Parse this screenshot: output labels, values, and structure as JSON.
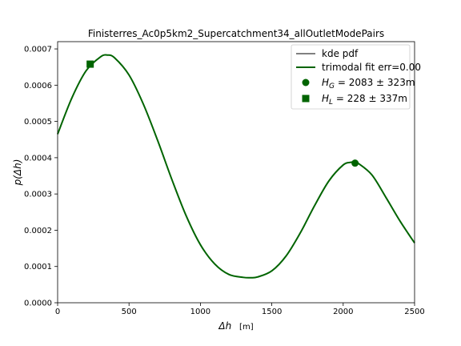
{
  "chart_data": {
    "type": "line",
    "title": "Finisterres_Ac0p5km2_Supercatchment34_allOutletModePairs",
    "xlabel": {
      "symbol": "Δh",
      "unit": "[m]"
    },
    "ylabel": {
      "symbol": "p(Δh)"
    },
    "xlim": [
      0,
      2500
    ],
    "ylim": [
      0,
      0.00072
    ],
    "xticks": [
      0,
      500,
      1000,
      1500,
      2000,
      2500
    ],
    "xtick_labels": [
      "0",
      "500",
      "1000",
      "1500",
      "2000",
      "2500"
    ],
    "yticks": [
      0,
      0.0001,
      0.0002,
      0.0003,
      0.0004,
      0.0005,
      0.0006,
      0.0007
    ],
    "ytick_labels": [
      "0.0000",
      "0.0001",
      "0.0002",
      "0.0003",
      "0.0004",
      "0.0005",
      "0.0006",
      "0.0007"
    ],
    "grid": false,
    "legend_position": "top-right",
    "series": [
      {
        "name": "kde pdf",
        "color": "#000000",
        "x": [
          0,
          100,
          200,
          300,
          350,
          400,
          500,
          600,
          700,
          800,
          900,
          1000,
          1100,
          1200,
          1300,
          1350,
          1400,
          1500,
          1600,
          1700,
          1800,
          1900,
          2000,
          2050,
          2083,
          2100,
          2200,
          2300,
          2400,
          2500
        ],
        "y": [
          0.000465,
          0.000565,
          0.00064,
          0.000678,
          0.000683,
          0.000675,
          0.000628,
          0.000548,
          0.000448,
          0.00034,
          0.00024,
          0.00016,
          0.000107,
          7.8e-05,
          7e-05,
          6.9e-05,
          7.1e-05,
          8.8e-05,
          0.000129,
          0.000193,
          0.000268,
          0.000336,
          0.00038,
          0.000387,
          0.000388,
          0.000386,
          0.000353,
          0.00029,
          0.000224,
          0.000165
        ]
      },
      {
        "name": "trimodal fit err=0.00",
        "color": "#006400",
        "x": [
          0,
          100,
          200,
          300,
          350,
          400,
          500,
          600,
          700,
          800,
          900,
          1000,
          1100,
          1200,
          1300,
          1350,
          1400,
          1500,
          1600,
          1700,
          1800,
          1900,
          2000,
          2050,
          2083,
          2100,
          2200,
          2300,
          2400,
          2500
        ],
        "y": [
          0.000465,
          0.000565,
          0.00064,
          0.000678,
          0.000683,
          0.000675,
          0.000628,
          0.000548,
          0.000448,
          0.00034,
          0.00024,
          0.00016,
          0.000107,
          7.8e-05,
          7e-05,
          6.9e-05,
          7.1e-05,
          8.8e-05,
          0.000129,
          0.000193,
          0.000268,
          0.000336,
          0.00038,
          0.000387,
          0.000388,
          0.000386,
          0.000353,
          0.00029,
          0.000224,
          0.000165
        ]
      }
    ],
    "markers": [
      {
        "name": "H_G",
        "shape": "circle",
        "color": "#006400",
        "x": 2083,
        "y": 0.000385,
        "legend": {
          "sym": "H",
          "sub": "G",
          "text": " = 2083 ± 323m"
        }
      },
      {
        "name": "H_L",
        "shape": "square",
        "color": "#006400",
        "x": 228,
        "y": 0.000658,
        "legend": {
          "sym": "H",
          "sub": "L",
          "text": " = 228 ± 337m"
        }
      }
    ]
  }
}
